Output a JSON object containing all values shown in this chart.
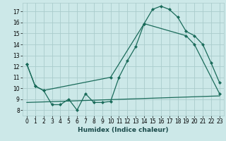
{
  "title": "",
  "xlabel": "Humidex (Indice chaleur)",
  "bg_color": "#cce8e8",
  "grid_color": "#aacccc",
  "line_color": "#1a6b5a",
  "xlim": [
    -0.5,
    23.5
  ],
  "ylim": [
    7.5,
    17.8
  ],
  "xticks": [
    0,
    1,
    2,
    3,
    4,
    5,
    6,
    7,
    8,
    9,
    10,
    11,
    12,
    13,
    14,
    15,
    16,
    17,
    18,
    19,
    20,
    21,
    22,
    23
  ],
  "yticks": [
    8,
    9,
    10,
    11,
    12,
    13,
    14,
    15,
    16,
    17
  ],
  "line1_x": [
    0,
    1,
    2,
    3,
    4,
    5,
    6,
    7,
    8,
    9,
    10,
    11,
    12,
    13,
    14,
    15,
    16,
    17,
    18,
    19,
    20,
    21,
    22,
    23
  ],
  "line1_y": [
    12.2,
    10.2,
    9.8,
    8.5,
    8.5,
    9.0,
    8.0,
    9.5,
    8.7,
    8.7,
    8.8,
    11.0,
    12.5,
    13.8,
    15.9,
    17.2,
    17.5,
    17.2,
    16.5,
    15.2,
    14.8,
    14.0,
    12.3,
    10.5
  ],
  "line2_x": [
    0,
    1,
    2,
    10,
    14,
    19,
    20,
    23
  ],
  "line2_y": [
    12.2,
    10.2,
    9.8,
    11.0,
    15.9,
    14.8,
    14.0,
    9.5
  ],
  "line3_x": [
    0,
    23
  ],
  "line3_y": [
    8.7,
    9.3
  ]
}
